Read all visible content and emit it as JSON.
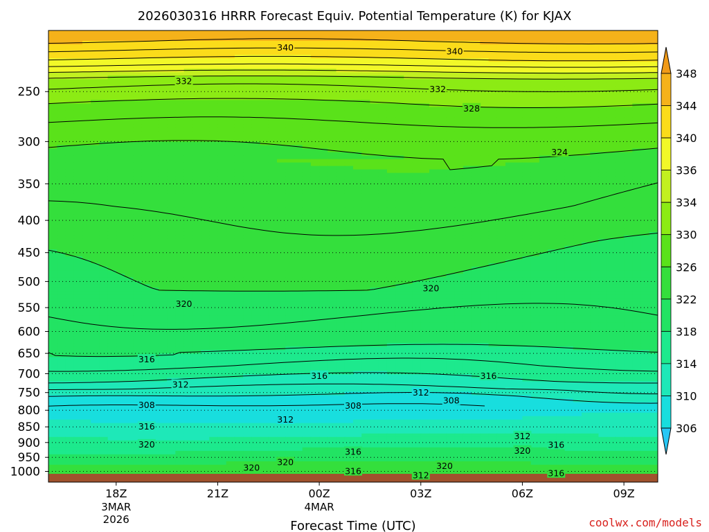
{
  "chart_data": {
    "type": "heatmap",
    "title": "2026030316 HRRR Forecast Equiv. Potential Temperature (K) for KJAX",
    "xlabel": "Forecast Time (UTC)",
    "ylabel": "",
    "x_ticks": [
      {
        "t": 0,
        "label": "18Z",
        "sub1": "3MAR",
        "sub2": "2026"
      },
      {
        "t": 3,
        "label": "21Z"
      },
      {
        "t": 6,
        "label": "00Z",
        "sub1": "4MAR"
      },
      {
        "t": 9,
        "label": "03Z"
      },
      {
        "t": 12,
        "label": "06Z"
      },
      {
        "t": 15,
        "label": "09Z"
      }
    ],
    "x_range_hours_from_18Z": [
      -2,
      16
    ],
    "y_axis": {
      "scale": "log",
      "reversed": true,
      "ylim": [
        1040,
        200
      ],
      "ticks": [
        250,
        300,
        350,
        400,
        450,
        500,
        550,
        600,
        650,
        700,
        750,
        800,
        850,
        900,
        950,
        1000
      ]
    },
    "gridlines": "dotted at pressure ticks",
    "colorbar": {
      "levels": [
        306,
        310,
        314,
        318,
        322,
        326,
        330,
        334,
        336,
        340,
        344,
        348
      ],
      "colors": [
        "#27c7f5",
        "#18dede",
        "#1ee8b8",
        "#1de98d",
        "#22e363",
        "#34df3c",
        "#5ae21a",
        "#8ceb14",
        "#c2f020",
        "#f2f828",
        "#fbdc1a",
        "#f5b21a",
        "#f09a18"
      ]
    },
    "profile": [
      {
        "p": 205,
        "v": 345
      },
      {
        "p": 215,
        "v": 342
      },
      {
        "p": 225,
        "v": 339
      },
      {
        "p": 240,
        "v": 333
      },
      {
        "p": 260,
        "v": 330
      },
      {
        "p": 290,
        "v": 327
      },
      {
        "p": 330,
        "v": 325
      },
      {
        "p": 380,
        "v": 324
      },
      {
        "p": 430,
        "v": 322.5
      },
      {
        "p": 520,
        "v": 321
      },
      {
        "p": 620,
        "v": 319
      },
      {
        "p": 680,
        "v": 316
      },
      {
        "p": 720,
        "v": 313.5
      },
      {
        "p": 760,
        "v": 310
      },
      {
        "p": 790,
        "v": 308
      },
      {
        "p": 830,
        "v": 310
      },
      {
        "p": 860,
        "v": 312
      },
      {
        "p": 900,
        "v": 316
      },
      {
        "p": 950,
        "v": 320
      },
      {
        "p": 990,
        "v": 324
      },
      {
        "p": 1020,
        "v": 325
      }
    ],
    "contour_labels": [
      {
        "t": 5,
        "p": 213,
        "text": "340"
      },
      {
        "t": 10,
        "p": 216,
        "text": "340"
      },
      {
        "t": 2,
        "p": 241,
        "text": "332"
      },
      {
        "t": 9.5,
        "p": 248,
        "text": "332"
      },
      {
        "t": 10.5,
        "p": 266,
        "text": "328"
      },
      {
        "t": 13.1,
        "p": 312,
        "text": "324"
      },
      {
        "t": 2,
        "p": 543,
        "text": "320"
      },
      {
        "t": 9.3,
        "p": 513,
        "text": "320"
      },
      {
        "t": 0.9,
        "p": 665,
        "text": "316"
      },
      {
        "t": 6,
        "p": 706,
        "text": "316"
      },
      {
        "t": 11,
        "p": 706,
        "text": "316"
      },
      {
        "t": 1.9,
        "p": 729,
        "text": "312"
      },
      {
        "t": 9.0,
        "p": 751,
        "text": "312"
      },
      {
        "t": 0.9,
        "p": 785,
        "text": "308"
      },
      {
        "t": 7.0,
        "p": 787,
        "text": "308"
      },
      {
        "t": 9.9,
        "p": 773,
        "text": "308"
      },
      {
        "t": 5,
        "p": 828,
        "text": "312"
      },
      {
        "t": 12.0,
        "p": 880,
        "text": "312"
      },
      {
        "t": 0.9,
        "p": 850,
        "text": "316"
      },
      {
        "t": 13.0,
        "p": 908,
        "text": "316"
      },
      {
        "t": 0.9,
        "p": 907,
        "text": "320"
      },
      {
        "t": 12.0,
        "p": 928,
        "text": "320"
      },
      {
        "t": 7.0,
        "p": 932,
        "text": "316"
      },
      {
        "t": 5.0,
        "p": 968,
        "text": "320"
      },
      {
        "t": 4.0,
        "p": 988,
        "text": "320"
      },
      {
        "t": 9.7,
        "p": 981,
        "text": "320"
      },
      {
        "t": 7.0,
        "p": 1000,
        "text": "316"
      },
      {
        "t": 13.0,
        "p": 1008,
        "text": "316"
      },
      {
        "t": 9.0,
        "p": 1015,
        "text": "312"
      }
    ]
  },
  "footer": {
    "site": "coolwx.com/models"
  }
}
